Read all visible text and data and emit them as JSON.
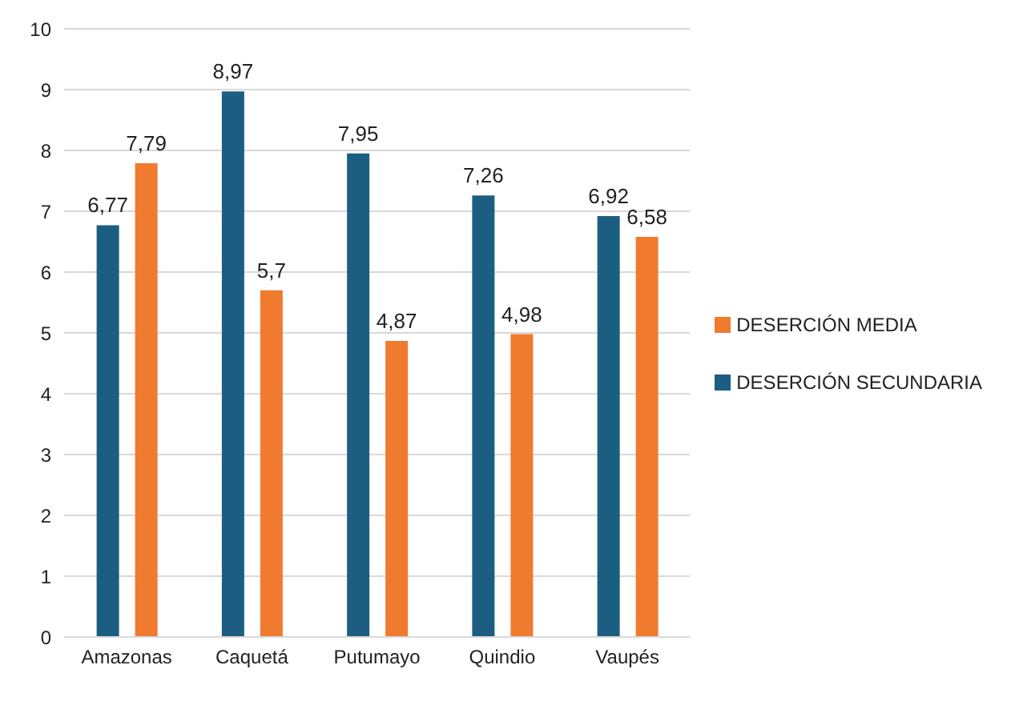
{
  "chart_data": {
    "type": "bar",
    "categories": [
      "Amazonas",
      "Caquetá",
      "Putumayo",
      "Quindio",
      "Vaupés"
    ],
    "series": [
      {
        "name": "DESERCIÓN SECUNDARIA",
        "color": "#1b5e82",
        "values": [
          6.77,
          8.97,
          7.95,
          7.26,
          6.92
        ],
        "value_labels": [
          "6,77",
          "8,97",
          "7,95",
          "7,26",
          "6,92"
        ]
      },
      {
        "name": "DESERCIÓN MEDIA",
        "color": "#f07b2f",
        "values": [
          7.79,
          5.7,
          4.87,
          4.98,
          6.58
        ],
        "value_labels": [
          "7,79",
          "5,7",
          "4,87",
          "4,98",
          "6,58"
        ]
      }
    ],
    "ylim": [
      0,
      10
    ],
    "yticks": [
      0,
      1,
      2,
      3,
      4,
      5,
      6,
      7,
      8,
      9,
      10
    ],
    "grid": "y",
    "legend": "right"
  }
}
